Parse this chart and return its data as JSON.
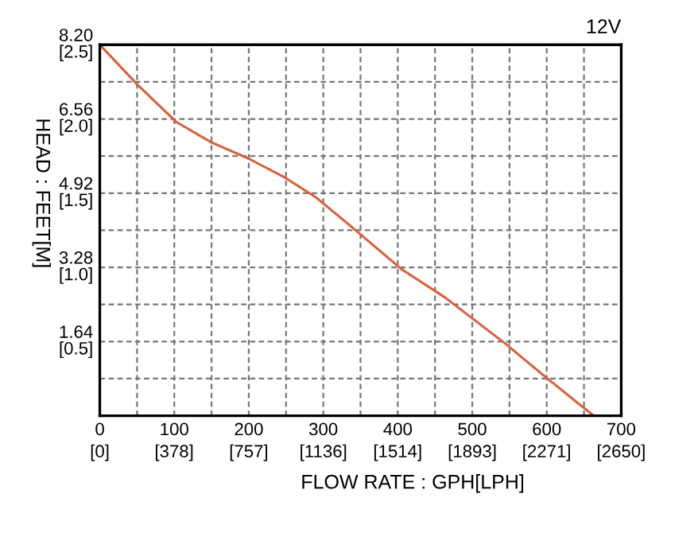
{
  "chart_data": {
    "type": "line",
    "xlabel": "FLOW RATE : GPH[LPH]",
    "ylabel": "HEAD : FEET[M]",
    "annotations": [
      "12V"
    ],
    "x": [
      0,
      51,
      103,
      149,
      199,
      249,
      290,
      345,
      405,
      463,
      544,
      598,
      663
    ],
    "series": [
      {
        "color": "#d9603b",
        "values": [
          8.2,
          7.31,
          6.49,
          6.05,
          5.69,
          5.26,
          4.83,
          4.08,
          3.24,
          2.62,
          1.6,
          0.86,
          0
        ]
      }
    ],
    "xlim": [
      0,
      700
    ],
    "ylim": [
      0,
      8.2
    ],
    "xticks": [
      0,
      {
        "value": 50,
        "label": null
      },
      100,
      {
        "value": 150,
        "label": null
      },
      200,
      {
        "value": 250,
        "label": null
      },
      300,
      {
        "value": 350,
        "label": null
      },
      400,
      {
        "value": 450,
        "label": null
      },
      500,
      {
        "value": 550,
        "label": null
      },
      600,
      {
        "value": 650,
        "label": null
      },
      700
    ],
    "yticks": [
      {
        "value": 0,
        "label": null
      },
      {
        "value": 0.82,
        "label": null
      },
      1.64,
      {
        "value": 2.46,
        "label": null
      },
      3.28,
      {
        "value": 4.1,
        "label": null
      },
      4.92,
      {
        "value": 5.74,
        "label": null
      },
      6.56,
      {
        "value": 7.38,
        "label": null
      },
      {
        "value": 8.2,
        "label": "8.20"
      }
    ],
    "x2lim": [
      0,
      2650
    ],
    "x2ticks": [
      {
        "value": 0,
        "label": "[0]"
      },
      {
        "value": 378,
        "label": "[378]"
      },
      {
        "value": 757,
        "label": "[757]"
      },
      {
        "value": 1136,
        "label": "[1136]"
      },
      {
        "value": 1514,
        "label": "[1514]"
      },
      {
        "value": 1893,
        "label": "[1893]"
      },
      {
        "value": 2271,
        "label": "[2271]"
      },
      {
        "value": 2650,
        "label": "[2650]"
      }
    ],
    "y2lim": [
      0,
      2.5
    ],
    "y2ticks": [
      {
        "value": 0.5,
        "label": "[0.5]"
      },
      {
        "value": 1.0,
        "label": "[1.0]"
      },
      {
        "value": 1.5,
        "label": "[1.5]"
      },
      {
        "value": 2.0,
        "label": "[2.0]"
      },
      {
        "value": 2.5,
        "label": "[2.5]"
      }
    ],
    "grid": true,
    "line_style": "solid"
  }
}
